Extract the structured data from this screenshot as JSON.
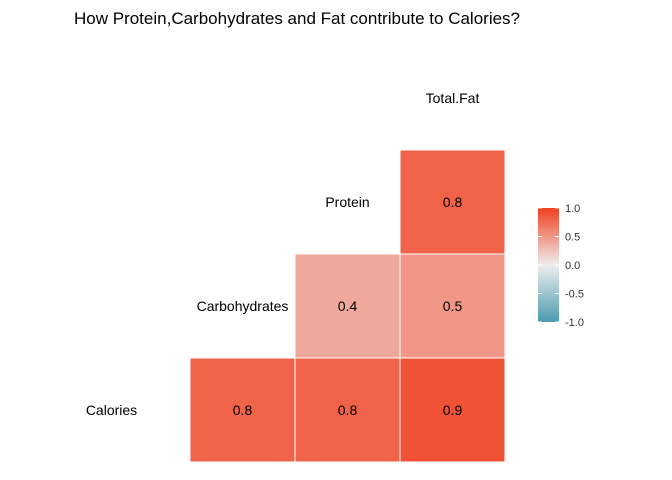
{
  "chart_data": {
    "type": "heatmap",
    "title": "How Protein,Carbohydrates and Fat contribute to Calories?",
    "variables": [
      "Calories",
      "Carbohydrates",
      "Protein",
      "Total.Fat"
    ],
    "cells": [
      {
        "row": "Carbohydrates",
        "col": "Calories",
        "value": 0.8
      },
      {
        "row": "Protein",
        "col": "Calories",
        "value": 0.8
      },
      {
        "row": "Total.Fat",
        "col": "Calories",
        "value": 0.9
      },
      {
        "row": "Protein",
        "col": "Carbohydrates",
        "value": 0.4
      },
      {
        "row": "Total.Fat",
        "col": "Carbohydrates",
        "value": 0.5
      },
      {
        "row": "Total.Fat",
        "col": "Protein",
        "value": 0.8
      }
    ],
    "legend": {
      "position": "right",
      "range": [
        -1.0,
        1.0
      ],
      "ticks": [
        "1.0",
        "0.5",
        "0.0",
        "-0.5",
        "-1.0"
      ],
      "colors": {
        "low": "#4A9BB0",
        "mid": "#EEEEEE",
        "high": "#F1401F"
      }
    },
    "grid": false
  }
}
